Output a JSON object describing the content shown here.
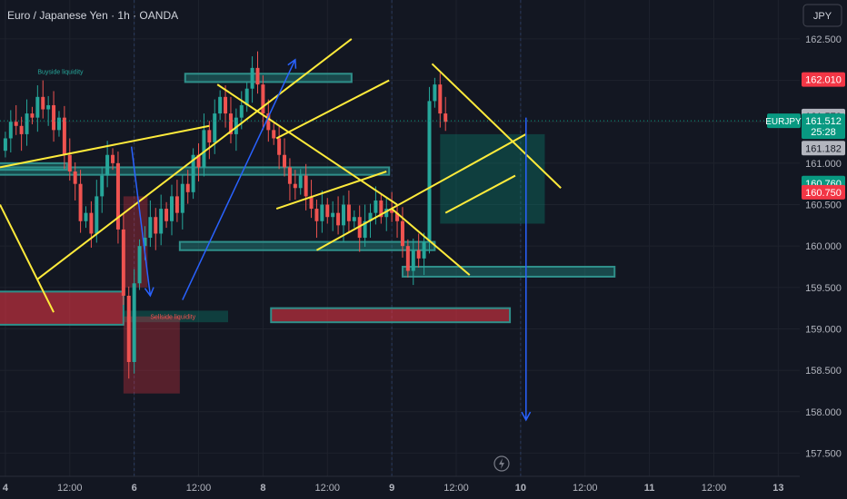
{
  "header": {
    "title": "Euro / Japanese Yen · 1h · OANDA",
    "currency_button": "JPY"
  },
  "chart_data": {
    "type": "candlestick",
    "symbol": "EURJPY",
    "y_axis": {
      "ticks": [
        162.5,
        162.0,
        161.5,
        161.0,
        160.5,
        160.0,
        159.5,
        159.0,
        158.5,
        158.0,
        157.5
      ],
      "tick_labels": [
        "162.500",
        "162.000",
        "161.500",
        "161.000",
        "160.500",
        "160.000",
        "159.500",
        "159.000",
        "158.500",
        "158.000",
        "157.500"
      ],
      "range": [
        157.22,
        162.97
      ]
    },
    "x_axis": {
      "range": [
        -1.0,
        148.0
      ],
      "ticks": [
        {
          "label": "4",
          "x": 0,
          "bold": true
        },
        {
          "label": "12:00",
          "x": 12,
          "bold": false
        },
        {
          "label": "6",
          "x": 24,
          "bold": true
        },
        {
          "label": "12:00",
          "x": 36,
          "bold": false
        },
        {
          "label": "8",
          "x": 48,
          "bold": true
        },
        {
          "label": "12:00",
          "x": 60,
          "bold": false
        },
        {
          "label": "9",
          "x": 72,
          "bold": true
        },
        {
          "label": "12:00",
          "x": 84,
          "bold": false
        },
        {
          "label": "10",
          "x": 96,
          "bold": true
        },
        {
          "label": "12:00",
          "x": 108,
          "bold": false
        },
        {
          "label": "11",
          "x": 120,
          "bold": true
        },
        {
          "label": "12:00",
          "x": 132,
          "bold": false
        },
        {
          "label": "13",
          "x": 144,
          "bold": true
        }
      ]
    },
    "candles_close": [
      161.3,
      161.5,
      161.45,
      161.35,
      161.6,
      161.55,
      161.8,
      161.65,
      161.7,
      161.4,
      161.55,
      161.1,
      160.9,
      160.75,
      160.3,
      160.4,
      160.15,
      160.6,
      160.85,
      161.1,
      161.0,
      160.2,
      159.4,
      158.6,
      159.55,
      160.0,
      160.1,
      160.35,
      160.15,
      160.45,
      160.3,
      160.6,
      160.4,
      160.75,
      160.65,
      161.1,
      160.95,
      161.4,
      161.25,
      161.6,
      161.8,
      161.6,
      161.35,
      161.55,
      161.7,
      161.9,
      162.15,
      161.95,
      161.6,
      161.4,
      161.3,
      161.1,
      160.95,
      160.75,
      160.7,
      160.85,
      160.6,
      160.45,
      160.3,
      160.5,
      160.35,
      160.4,
      160.25,
      160.5,
      160.3,
      160.35,
      160.1,
      160.3,
      160.4,
      160.55,
      160.35,
      160.45,
      160.4,
      160.3,
      160.0,
      159.7,
      159.95,
      159.85,
      160.05,
      161.75,
      161.95,
      161.6,
      161.5
    ],
    "series_color_up": "#26a69a",
    "series_color_down": "#ef5350",
    "last_price": {
      "label": "EURJPY",
      "value": "161.512",
      "countdown": "25:28",
      "color": "#089981"
    },
    "price_labels": [
      {
        "value": "162.010",
        "color": "#f23645",
        "y": 162.01
      },
      {
        "value": "161.570",
        "color": "#b2b5be",
        "y": 161.57
      },
      {
        "value": "161.182",
        "color": "#b2b5be",
        "y": 161.182
      },
      {
        "value": "160.760",
        "color": "#089981",
        "y": 160.76
      },
      {
        "value": "160.750",
        "color": "#f23645",
        "y": 160.65
      }
    ],
    "annotations": [
      {
        "text": "Buyside liquidity",
        "x": 6,
        "y": 162.08,
        "color": "#26a69a"
      },
      {
        "text": "Sellside liquidity",
        "x": 27,
        "y": 159.12,
        "color": "#ef5350"
      }
    ],
    "zones": [
      {
        "x1": -5,
        "x2": 11.5,
        "y1": 161.0,
        "y2": 160.92,
        "kind": "teal"
      },
      {
        "x1": 33.5,
        "x2": 64.5,
        "y1": 162.08,
        "y2": 161.98,
        "kind": "teal"
      },
      {
        "x1": -5,
        "x2": 71.5,
        "y1": 160.95,
        "y2": 160.86,
        "kind": "teal"
      },
      {
        "x1": 32.5,
        "x2": 80,
        "y1": 160.05,
        "y2": 159.95,
        "kind": "teal"
      },
      {
        "x1": 74,
        "x2": 113.5,
        "y1": 159.75,
        "y2": 159.63,
        "kind": "teal"
      },
      {
        "x1": -5,
        "x2": 22,
        "y1": 159.45,
        "y2": 159.05,
        "kind": "red"
      },
      {
        "x1": 49.5,
        "x2": 94,
        "y1": 159.25,
        "y2": 159.08,
        "kind": "red"
      },
      {
        "x1": 22,
        "x2": 41.5,
        "y1": 159.22,
        "y2": 159.08,
        "kind": "teal-dark"
      },
      {
        "x1": 22,
        "x2": 32.5,
        "y1": 159.15,
        "y2": 158.22,
        "kind": "red-dark"
      },
      {
        "x1": 22,
        "x2": 26.5,
        "y1": 160.6,
        "y2": 159.5,
        "kind": "red-dark"
      },
      {
        "x1": 81,
        "x2": 100.5,
        "y1": 161.35,
        "y2": 160.27,
        "kind": "teal-dark"
      }
    ],
    "trendlines_yellow": [
      {
        "x1": -1,
        "y1": 160.95,
        "x2": 38,
        "y2": 161.45
      },
      {
        "x1": -1,
        "y1": 160.5,
        "x2": 9,
        "y2": 159.2
      },
      {
        "x1": 6,
        "y1": 159.6,
        "x2": 64.5,
        "y2": 162.5
      },
      {
        "x1": 39.5,
        "y1": 161.95,
        "x2": 73,
        "y2": 160.5
      },
      {
        "x1": 50.5,
        "y1": 160.45,
        "x2": 71,
        "y2": 160.9
      },
      {
        "x1": 50.5,
        "y1": 161.3,
        "x2": 71.5,
        "y2": 162.0
      },
      {
        "x1": 58,
        "y1": 159.95,
        "x2": 97,
        "y2": 161.35
      },
      {
        "x1": 72,
        "y1": 160.45,
        "x2": 86.5,
        "y2": 159.65
      },
      {
        "x1": 82,
        "y1": 160.4,
        "x2": 95,
        "y2": 160.85
      },
      {
        "x1": 79.5,
        "y1": 162.2,
        "x2": 103.5,
        "y2": 160.7
      }
    ],
    "arrows_blue": [
      {
        "x1": 23.5,
        "y1": 161.2,
        "x2": 27,
        "y2": 159.4
      },
      {
        "x1": 33,
        "y1": 159.35,
        "x2": 54,
        "y2": 162.25
      },
      {
        "x1": 97,
        "y1": 161.55,
        "x2": 97,
        "y2": 157.9
      }
    ],
    "crosshair_line_y": 161.512
  }
}
